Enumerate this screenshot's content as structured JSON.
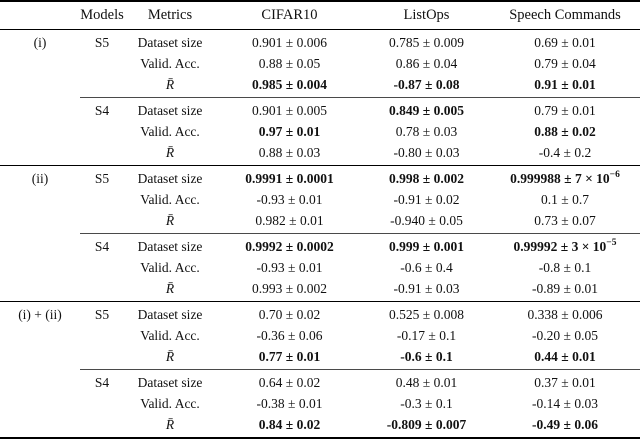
{
  "table": {
    "headers": [
      "",
      "Models",
      "Metrics",
      "CIFAR10",
      "ListOps",
      "Speech Commands"
    ],
    "sections": [
      {
        "label": "(i)",
        "models": [
          {
            "name": "S5",
            "rows": [
              {
                "metric": "Dataset size",
                "math": false,
                "values": [
                  {
                    "t": "0.901 ± 0.006",
                    "b": false
                  },
                  {
                    "t": "0.785 ± 0.009",
                    "b": false
                  },
                  {
                    "t": "0.69 ± 0.01",
                    "b": false
                  }
                ]
              },
              {
                "metric": "Valid. Acc.",
                "math": false,
                "values": [
                  {
                    "t": "0.88 ± 0.05",
                    "b": false
                  },
                  {
                    "t": "0.86 ± 0.04",
                    "b": false
                  },
                  {
                    "t": "0.79 ± 0.04",
                    "b": false
                  }
                ]
              },
              {
                "metric": "R̄",
                "math": true,
                "values": [
                  {
                    "t": "0.985 ± 0.004",
                    "b": true
                  },
                  {
                    "t": "-0.87 ± 0.08",
                    "b": true
                  },
                  {
                    "t": "0.91 ± 0.01",
                    "b": true
                  }
                ]
              }
            ]
          },
          {
            "name": "S4",
            "rows": [
              {
                "metric": "Dataset size",
                "math": false,
                "values": [
                  {
                    "t": "0.901 ± 0.005",
                    "b": false
                  },
                  {
                    "t": "0.849 ± 0.005",
                    "b": true
                  },
                  {
                    "t": "0.79 ± 0.01",
                    "b": false
                  }
                ]
              },
              {
                "metric": "Valid. Acc.",
                "math": false,
                "values": [
                  {
                    "t": "0.97 ± 0.01",
                    "b": true
                  },
                  {
                    "t": "0.78 ± 0.03",
                    "b": false
                  },
                  {
                    "t": "0.88 ± 0.02",
                    "b": true
                  }
                ]
              },
              {
                "metric": "R̄",
                "math": true,
                "values": [
                  {
                    "t": "0.88 ± 0.03",
                    "b": false
                  },
                  {
                    "t": "-0.80 ± 0.03",
                    "b": false
                  },
                  {
                    "t": "-0.4 ± 0.2",
                    "b": false
                  }
                ]
              }
            ]
          }
        ]
      },
      {
        "label": "(ii)",
        "models": [
          {
            "name": "S5",
            "rows": [
              {
                "metric": "Dataset size",
                "math": false,
                "values": [
                  {
                    "t": "0.9991 ± 0.0001",
                    "b": true
                  },
                  {
                    "t": "0.998 ± 0.002",
                    "b": true
                  },
                  {
                    "t": "0.999988 ± 7 × 10^−6",
                    "b": true
                  }
                ]
              },
              {
                "metric": "Valid. Acc.",
                "math": false,
                "values": [
                  {
                    "t": "-0.93 ± 0.01",
                    "b": false
                  },
                  {
                    "t": "-0.91 ± 0.02",
                    "b": false
                  },
                  {
                    "t": "0.1 ± 0.7",
                    "b": false
                  }
                ]
              },
              {
                "metric": "R̄",
                "math": true,
                "values": [
                  {
                    "t": "0.982 ± 0.01",
                    "b": false
                  },
                  {
                    "t": "-0.940 ± 0.05",
                    "b": false
                  },
                  {
                    "t": "0.73 ± 0.07",
                    "b": false
                  }
                ]
              }
            ]
          },
          {
            "name": "S4",
            "rows": [
              {
                "metric": "Dataset size",
                "math": false,
                "values": [
                  {
                    "t": "0.9992 ± 0.0002",
                    "b": true
                  },
                  {
                    "t": "0.999 ± 0.001",
                    "b": true
                  },
                  {
                    "t": "0.99992 ± 3 × 10^−5",
                    "b": true
                  }
                ]
              },
              {
                "metric": "Valid. Acc.",
                "math": false,
                "values": [
                  {
                    "t": "-0.93 ± 0.01",
                    "b": false
                  },
                  {
                    "t": "-0.6 ± 0.4",
                    "b": false
                  },
                  {
                    "t": "-0.8 ± 0.1",
                    "b": false
                  }
                ]
              },
              {
                "metric": "R̄",
                "math": true,
                "values": [
                  {
                    "t": "0.993 ± 0.002",
                    "b": false
                  },
                  {
                    "t": "-0.91 ± 0.03",
                    "b": false
                  },
                  {
                    "t": "-0.89 ± 0.01",
                    "b": false
                  }
                ]
              }
            ]
          }
        ]
      },
      {
        "label": "(i) + (ii)",
        "models": [
          {
            "name": "S5",
            "rows": [
              {
                "metric": "Dataset size",
                "math": false,
                "values": [
                  {
                    "t": "0.70 ± 0.02",
                    "b": false
                  },
                  {
                    "t": "0.525 ± 0.008",
                    "b": false
                  },
                  {
                    "t": "0.338 ± 0.006",
                    "b": false
                  }
                ]
              },
              {
                "metric": "Valid. Acc.",
                "math": false,
                "values": [
                  {
                    "t": "-0.36 ± 0.06",
                    "b": false
                  },
                  {
                    "t": "-0.17 ± 0.1",
                    "b": false
                  },
                  {
                    "t": "-0.20 ± 0.05",
                    "b": false
                  }
                ]
              },
              {
                "metric": "R̄",
                "math": true,
                "values": [
                  {
                    "t": "0.77 ± 0.01",
                    "b": true
                  },
                  {
                    "t": "-0.6 ± 0.1",
                    "b": true
                  },
                  {
                    "t": "0.44 ± 0.01",
                    "b": true
                  }
                ]
              }
            ]
          },
          {
            "name": "S4",
            "rows": [
              {
                "metric": "Dataset size",
                "math": false,
                "values": [
                  {
                    "t": "0.64 ± 0.02",
                    "b": false
                  },
                  {
                    "t": "0.48 ± 0.01",
                    "b": false
                  },
                  {
                    "t": "0.37 ± 0.01",
                    "b": false
                  }
                ]
              },
              {
                "metric": "Valid. Acc.",
                "math": false,
                "values": [
                  {
                    "t": "-0.38 ± 0.01",
                    "b": false
                  },
                  {
                    "t": "-0.3 ± 0.1",
                    "b": false
                  },
                  {
                    "t": "-0.14 ± 0.03",
                    "b": false
                  }
                ]
              },
              {
                "metric": "R̄",
                "math": true,
                "values": [
                  {
                    "t": "0.84 ± 0.02",
                    "b": true
                  },
                  {
                    "t": "-0.809 ± 0.007",
                    "b": true
                  },
                  {
                    "t": "-0.49 ± 0.06",
                    "b": true
                  }
                ]
              }
            ]
          }
        ]
      }
    ]
  }
}
